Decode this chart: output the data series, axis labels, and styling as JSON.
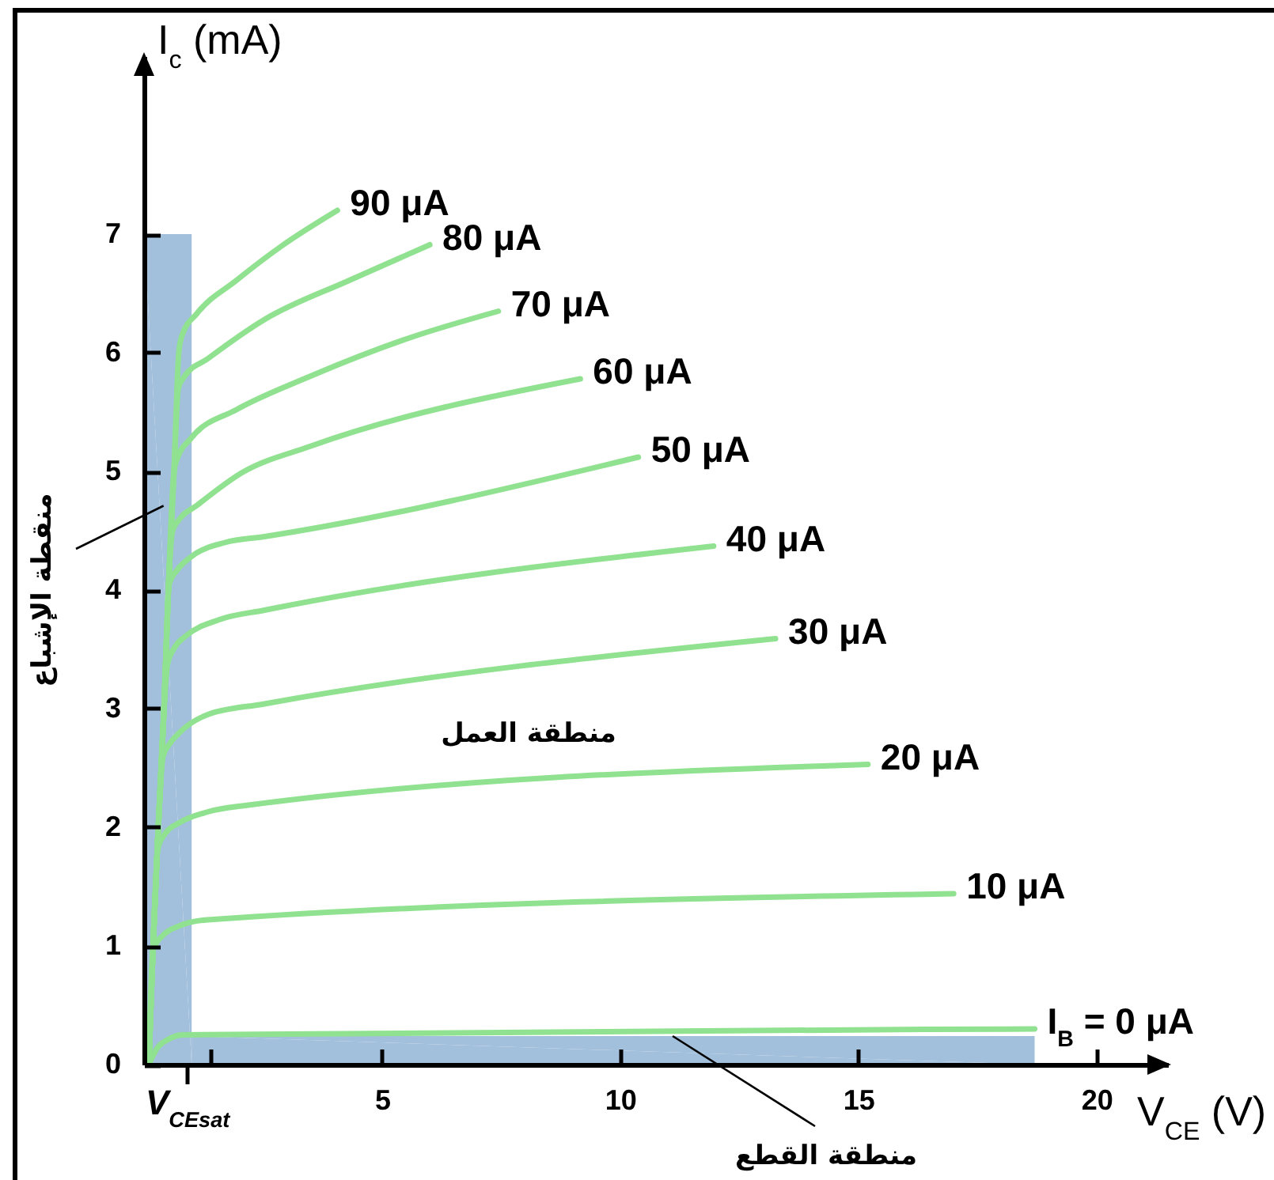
{
  "chart_data": {
    "type": "line",
    "xlabel": "V$_{CE}$ (V)",
    "ylabel": "I$_{c}$ (mA)",
    "xlim": [
      0,
      21.5
    ],
    "ylim": [
      0,
      8.5
    ],
    "xticks": [
      {
        "value": 0.9,
        "label": "V$_{CEsat}$"
      },
      {
        "value": 1.4,
        "label": null
      },
      5,
      10,
      15,
      20
    ],
    "yticks": [
      0,
      1,
      2,
      3,
      4,
      5,
      6,
      7
    ],
    "annotations": [
      {
        "text": "منقطة الإشباع",
        "x": 0.41,
        "y": 4.71
      },
      "منطقة العمل",
      {
        "text": "منطقة القطع",
        "x": 11.1,
        "y": 0.24
      }
    ],
    "series": [
      {
        "type": "area",
        "color": "#a2bfdb",
        "x": [
          0,
          1,
          1,
          18.7
        ],
        "values": [
          7,
          7,
          0.24,
          0.24
        ]
      },
      {
        "name": "I$_{B}$ = 0 μA",
        "color": "#90e290",
        "x": [
          0.1,
          0.28,
          0.5,
          0.8,
          18.7
        ],
        "values": [
          0,
          0.14,
          0.21,
          0.25,
          0.3
        ]
      },
      {
        "name": "10 μA",
        "color": "#90e290",
        "x": [
          0.1,
          0.19,
          0.4,
          0.75,
          1.34,
          17.0
        ],
        "values": [
          0,
          0.97,
          1.09,
          1.17,
          1.22,
          1.44
        ]
      },
      {
        "name": "20 μA",
        "color": "#90e290",
        "x": [
          0.1,
          0.19,
          0.29,
          0.45,
          0.75,
          1.34,
          2.06,
          15.2
        ],
        "values": [
          0,
          1.0,
          1.82,
          1.95,
          2.04,
          2.13,
          2.18,
          2.53
        ]
      },
      {
        "name": "30 μA",
        "color": "#90e290",
        "x": [
          0.1,
          0.19,
          0.3,
          0.4,
          0.55,
          0.75,
          1.34,
          2.53,
          13.26
        ],
        "values": [
          0,
          1.0,
          2.0,
          2.6,
          2.71,
          2.8,
          2.95,
          3.04,
          3.59
        ]
      },
      {
        "name": "40 μA",
        "color": "#90e290",
        "x": [
          0.1,
          0.19,
          0.3,
          0.42,
          0.49,
          0.65,
          0.87,
          1.58,
          2.53,
          11.96
        ],
        "values": [
          0,
          1.0,
          2.0,
          3.0,
          3.37,
          3.52,
          3.61,
          3.75,
          3.83,
          4.37
        ]
      },
      {
        "name": "50 μA",
        "color": "#90e290",
        "x": [
          0.1,
          0.19,
          0.3,
          0.42,
          0.53,
          0.7,
          0.99,
          1.7,
          2.53,
          10.38
        ],
        "values": [
          0,
          1.0,
          2.0,
          3.0,
          4.05,
          4.17,
          4.28,
          4.4,
          4.45,
          5.12
        ]
      },
      {
        "name": "60 μA",
        "color": "#90e290",
        "x": [
          0.1,
          0.19,
          0.3,
          0.42,
          0.51,
          0.6,
          0.75,
          1.1,
          2.06,
          3.48,
          9.16
        ],
        "values": [
          0,
          1.0,
          2.0,
          3.0,
          4.0,
          4.5,
          4.6,
          4.71,
          4.99,
          5.21,
          5.78
        ]
      },
      {
        "name": "70 μA",
        "color": "#90e290",
        "x": [
          0.1,
          0.19,
          0.3,
          0.42,
          0.51,
          0.63,
          0.69,
          0.99,
          1.94,
          3.48,
          5.61,
          7.44
        ],
        "values": [
          0,
          1.0,
          2.0,
          3.0,
          4.0,
          5.0,
          5.1,
          5.28,
          5.52,
          5.8,
          6.13,
          6.35
        ]
      },
      {
        "name": "80 μA",
        "color": "#90e290",
        "x": [
          0.1,
          0.19,
          0.3,
          0.42,
          0.51,
          0.63,
          0.72,
          0.85,
          1.34,
          2.53,
          4.31,
          6.0
        ],
        "values": [
          0,
          1.0,
          2.0,
          3.0,
          4.0,
          5.0,
          5.7,
          5.8,
          5.95,
          6.28,
          6.61,
          6.91
        ]
      },
      {
        "name": "90 μA",
        "color": "#90e290",
        "x": [
          0.1,
          0.19,
          0.3,
          0.42,
          0.51,
          0.63,
          0.73,
          0.8,
          1.11,
          1.94,
          2.89,
          4.06
        ],
        "values": [
          0,
          1.0,
          2.0,
          3.0,
          4.0,
          5.0,
          6.0,
          6.15,
          6.33,
          6.61,
          6.9,
          7.2
        ]
      }
    ]
  }
}
